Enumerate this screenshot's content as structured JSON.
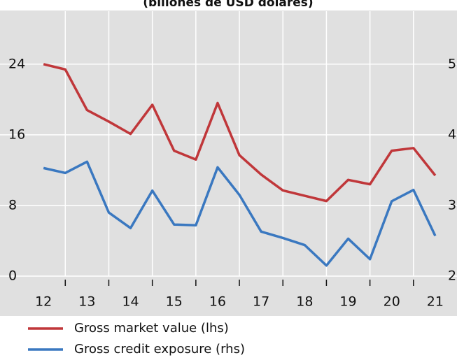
{
  "chart_data": {
    "type": "line",
    "title": "(billones de USD dólares)",
    "x": [
      12,
      12.5,
      13,
      13.5,
      14,
      14.5,
      15,
      15.5,
      16,
      16.5,
      17,
      17.5,
      18,
      18.5,
      19,
      19.5,
      20,
      20.5,
      21
    ],
    "xlim": [
      11,
      21.5
    ],
    "xticks": [
      12,
      13,
      14,
      15,
      16,
      17,
      18,
      19,
      20,
      21
    ],
    "xminorticks": [
      12.5,
      13.5,
      14.5,
      15.5,
      16.5,
      17.5,
      18.5,
      19.5,
      20.5
    ],
    "ylim": [
      0,
      30
    ],
    "yticks": [
      0,
      8,
      16,
      24
    ],
    "y2lim": [
      2,
      5.75
    ],
    "y2ticks": [
      2,
      3,
      4,
      5
    ],
    "grid": true,
    "series": [
      {
        "name": "Gross market value (lhs)",
        "color": "#c0373a",
        "values": [
          24.0,
          23.4,
          18.8,
          17.5,
          16.1,
          19.4,
          14.2,
          13.2,
          19.6,
          13.7,
          11.5,
          9.7,
          9.1,
          8.5,
          10.9,
          10.4,
          14.2,
          14.5,
          11.4
        ]
      },
      {
        "name": "Gross credit exposure (rhs)",
        "color": "#3a78c0",
        "axis": "y2",
        "values": [
          3.53,
          3.46,
          3.62,
          2.9,
          2.68,
          3.21,
          2.73,
          2.72,
          3.54,
          3.15,
          2.63,
          2.54,
          2.44,
          2.15,
          2.53,
          2.24,
          3.06,
          3.22,
          2.57
        ]
      }
    ]
  }
}
